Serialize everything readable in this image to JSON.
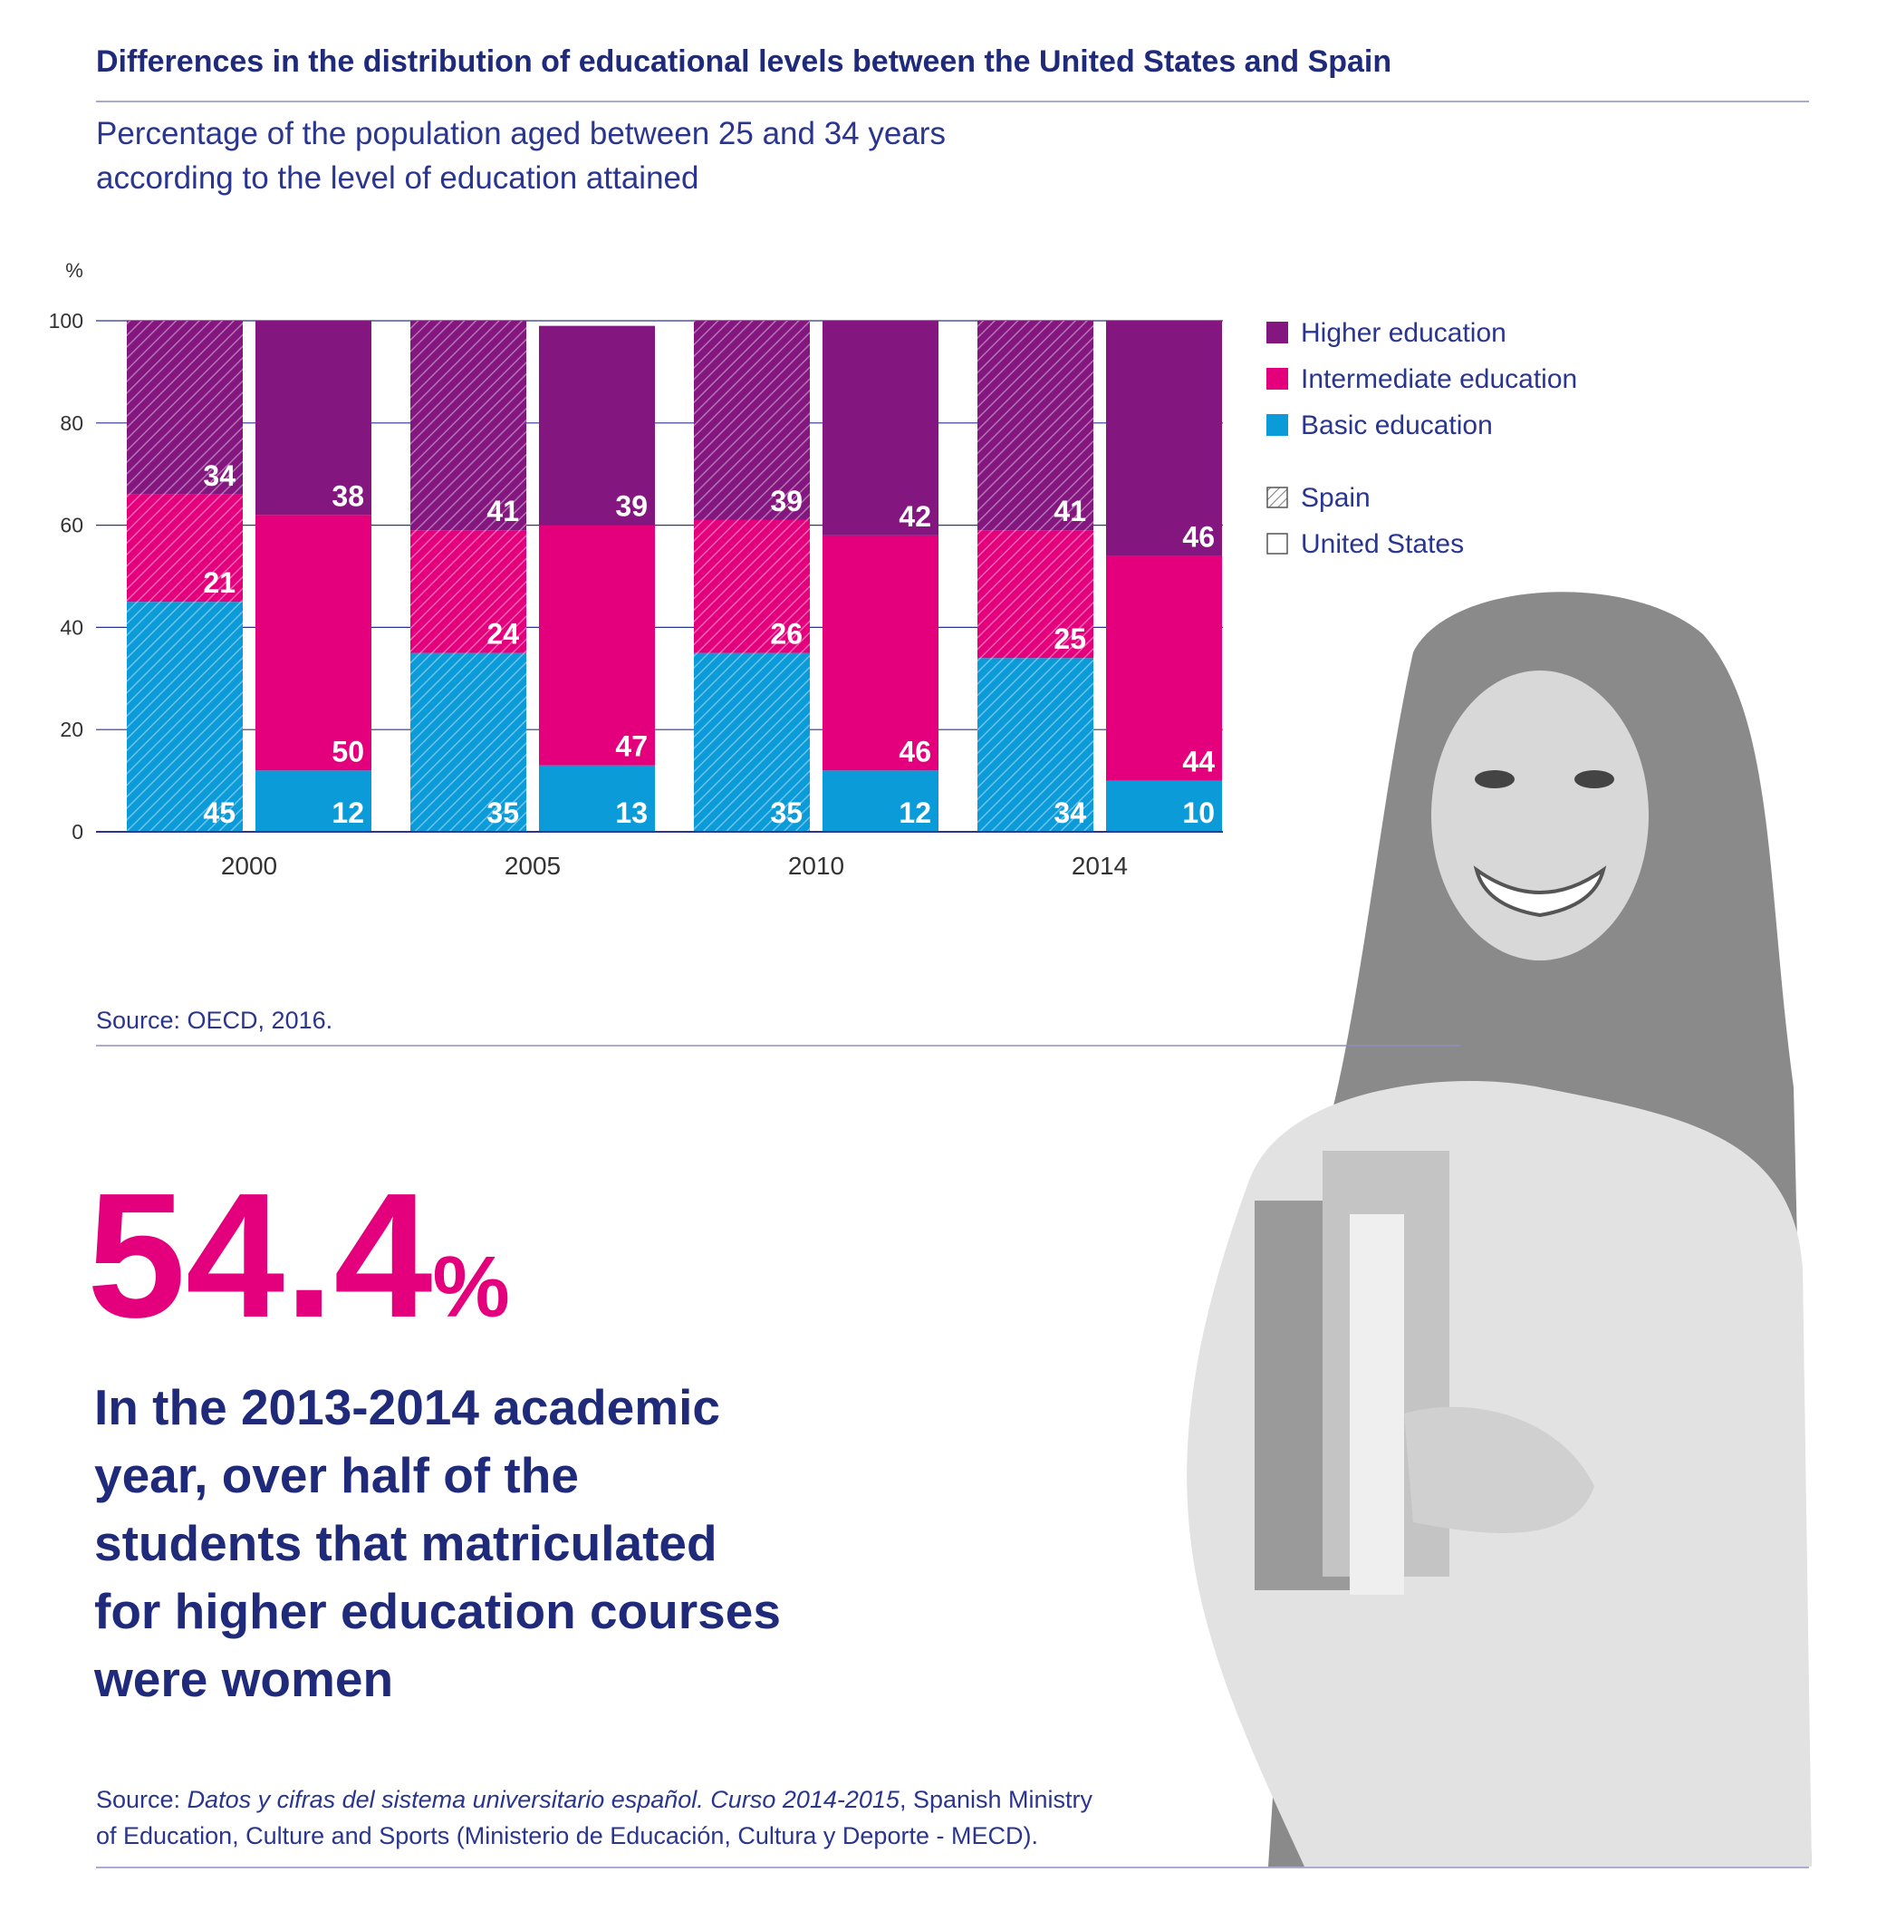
{
  "header": {
    "title": "Differences in the distribution of educational levels between the United States and Spain"
  },
  "chart_data": {
    "type": "bar",
    "stacked": true,
    "subtitle": [
      "Percentage of the population aged between 25 and 34 years",
      "according to the level of education attained"
    ],
    "y_label": "%",
    "categories": [
      "2000",
      "2005",
      "2010",
      "2014"
    ],
    "stacks": [
      {
        "name": "Spain",
        "pattern": "hatched"
      },
      {
        "name": "United States",
        "pattern": "solid"
      }
    ],
    "series": [
      {
        "name": "Basic education",
        "color": "#0b9bd8",
        "values": [
          [
            45,
            12
          ],
          [
            35,
            13
          ],
          [
            35,
            12
          ],
          [
            34,
            10
          ]
        ]
      },
      {
        "name": "Intermediate education",
        "color": "#e4007c",
        "values": [
          [
            21,
            50
          ],
          [
            24,
            47
          ],
          [
            26,
            46
          ],
          [
            25,
            44
          ]
        ]
      },
      {
        "name": "Higher education",
        "color": "#84177f",
        "values": [
          [
            34,
            38
          ],
          [
            41,
            39
          ],
          [
            39,
            42
          ],
          [
            41,
            46
          ]
        ]
      }
    ],
    "ylim": [
      0,
      100
    ],
    "yticks": [
      0,
      20,
      40,
      60,
      80,
      100
    ],
    "grid": true,
    "legend": "right",
    "source": "Source: OECD, 2016."
  },
  "highlight": {
    "number": "54.4",
    "unit": "%",
    "lines": [
      "In the 2013-2014 academic",
      "year, over half of the",
      "students that matriculated",
      "for higher education courses",
      "were women"
    ]
  },
  "source_note": {
    "prefix": "Source: ",
    "title": "Datos y cifras del sistema universitario español. Curso 2014-2015",
    "rest": ", Spanish Ministry",
    "line2": "of Education, Culture and Sports (Ministerio de Educación, Cultura y Deporte - MECD)."
  }
}
